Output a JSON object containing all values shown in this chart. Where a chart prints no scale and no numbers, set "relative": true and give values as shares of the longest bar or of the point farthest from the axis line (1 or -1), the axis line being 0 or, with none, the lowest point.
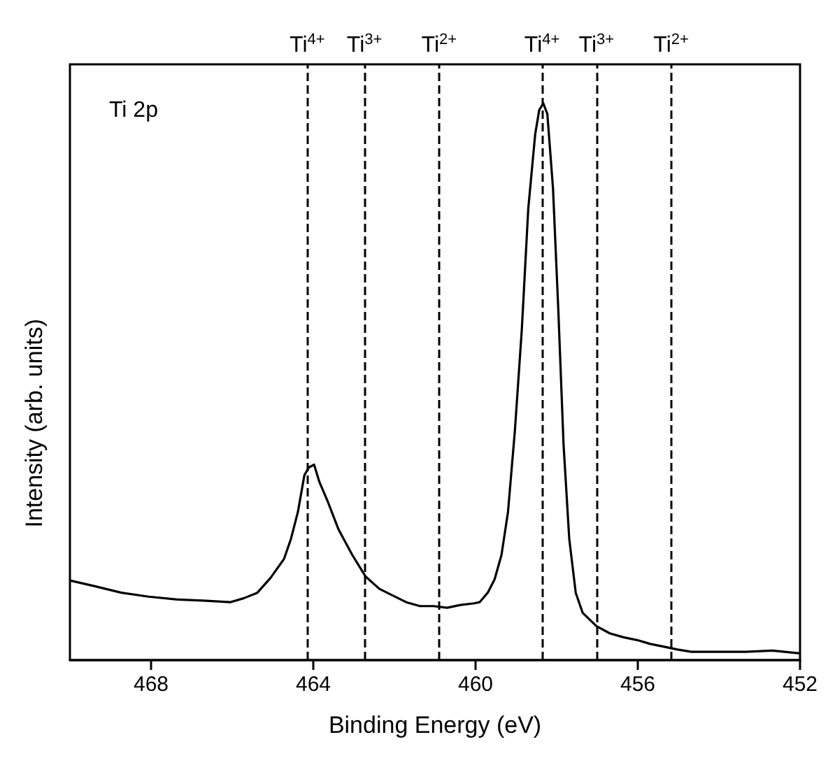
{
  "chart_data": {
    "type": "line",
    "relative": true,
    "xlabel": "Binding Energy (eV)",
    "ylabel": "Intensity (arb. units)",
    "annotations": [
      "Ti 2p"
    ],
    "xlim": [
      470,
      452
    ],
    "xticks": [
      468,
      464,
      460,
      456,
      452
    ],
    "grid": false,
    "marker": "none",
    "line_style": "solid",
    "series": [
      {
        "color": "#000000",
        "x": [
          470,
          469.4,
          468.73,
          468.06,
          467.39,
          466.72,
          466.05,
          465.72,
          465.38,
          465.05,
          464.72,
          464.55,
          464.38,
          464.22,
          464.11,
          463.98,
          463.85,
          463.65,
          463.38,
          463.04,
          462.71,
          462.37,
          462.04,
          461.71,
          461.37,
          461.04,
          460.7,
          460.37,
          460.03,
          459.9,
          459.7,
          459.53,
          459.36,
          459.2,
          459.03,
          458.86,
          458.7,
          458.53,
          458.43,
          458.33,
          458.23,
          458.09,
          457.96,
          457.83,
          457.69,
          457.53,
          457.36,
          457.02,
          456.69,
          456.35,
          456.02,
          455.69,
          455.35,
          455.02,
          454.68,
          454.01,
          453.34,
          452.68,
          452
        ],
        "values": [
          0.143,
          0.133,
          0.121,
          0.114,
          0.109,
          0.107,
          0.104,
          0.111,
          0.121,
          0.148,
          0.182,
          0.218,
          0.266,
          0.332,
          0.346,
          0.351,
          0.32,
          0.286,
          0.235,
          0.189,
          0.15,
          0.128,
          0.116,
          0.104,
          0.097,
          0.097,
          0.094,
          0.099,
          0.102,
          0.104,
          0.121,
          0.145,
          0.189,
          0.266,
          0.412,
          0.593,
          0.811,
          0.944,
          0.988,
          1,
          0.981,
          0.847,
          0.63,
          0.387,
          0.218,
          0.121,
          0.085,
          0.061,
          0.048,
          0.041,
          0.036,
          0.029,
          0.024,
          0.019,
          0.015,
          0.015,
          0.015,
          0.017,
          0.012
        ]
      }
    ],
    "ref_lines": [
      {
        "axis": "x",
        "value": 464.15,
        "label": "Ti$^{4+}$",
        "line_style": "dashed",
        "color": "#000000"
      },
      {
        "axis": "x",
        "value": 462.74,
        "label": "Ti$^{3+}$",
        "line_style": "dashed",
        "color": "#000000"
      },
      {
        "axis": "x",
        "value": 460.9,
        "label": "Ti$^{2+}$",
        "line_style": "dashed",
        "color": "#000000"
      },
      {
        "axis": "x",
        "value": 458.36,
        "label": "Ti$^{4+}$",
        "line_style": "dashed",
        "color": "#000000"
      },
      {
        "axis": "x",
        "value": 457.02,
        "label": "Ti$^{3+}$",
        "line_style": "dashed",
        "color": "#000000"
      },
      {
        "axis": "x",
        "value": 455.18,
        "label": "Ti$^{2+}$",
        "line_style": "dashed",
        "color": "#000000"
      }
    ]
  }
}
